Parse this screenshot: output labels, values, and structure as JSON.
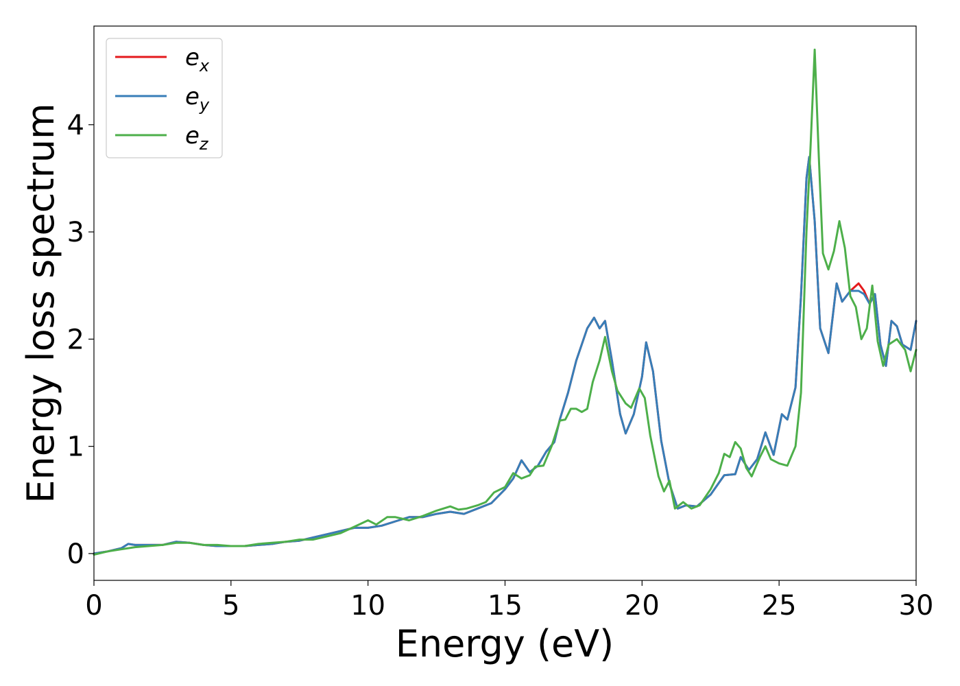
{
  "chart_data": {
    "type": "line",
    "xlabel": "Energy (eV)",
    "ylabel": "Energy loss spectrum",
    "xlim": [
      0,
      30
    ],
    "ylim": [
      -0.25,
      4.92
    ],
    "x_ticks": [
      0,
      5,
      10,
      15,
      20,
      25,
      30
    ],
    "y_ticks": [
      0,
      1,
      2,
      3,
      4
    ],
    "grid": false,
    "legend_position": "top-left",
    "series": [
      {
        "name": "e_x",
        "legend_base": "e",
        "legend_sub": "x",
        "color": "#e41a1c",
        "points": [
          [
            0,
            0
          ],
          [
            0.5,
            0.02
          ],
          [
            1.0,
            0.05
          ],
          [
            1.25,
            0.09
          ],
          [
            1.5,
            0.08
          ],
          [
            2.0,
            0.08
          ],
          [
            2.5,
            0.08
          ],
          [
            3.0,
            0.11
          ],
          [
            3.5,
            0.1
          ],
          [
            4.0,
            0.08
          ],
          [
            4.5,
            0.07
          ],
          [
            5.0,
            0.07
          ],
          [
            5.5,
            0.07
          ],
          [
            6.0,
            0.08
          ],
          [
            6.5,
            0.09
          ],
          [
            7.0,
            0.11
          ],
          [
            7.5,
            0.12
          ],
          [
            8.0,
            0.15
          ],
          [
            8.5,
            0.18
          ],
          [
            9.0,
            0.21
          ],
          [
            9.5,
            0.24
          ],
          [
            10.0,
            0.24
          ],
          [
            10.5,
            0.26
          ],
          [
            11.0,
            0.3
          ],
          [
            11.5,
            0.34
          ],
          [
            12.0,
            0.34
          ],
          [
            12.5,
            0.37
          ],
          [
            13.0,
            0.39
          ],
          [
            13.5,
            0.37
          ],
          [
            14.0,
            0.42
          ],
          [
            14.5,
            0.47
          ],
          [
            15.0,
            0.6
          ],
          [
            15.3,
            0.7
          ],
          [
            15.6,
            0.87
          ],
          [
            15.9,
            0.76
          ],
          [
            16.2,
            0.82
          ],
          [
            16.5,
            0.95
          ],
          [
            16.8,
            1.04
          ],
          [
            17.0,
            1.25
          ],
          [
            17.3,
            1.5
          ],
          [
            17.6,
            1.8
          ],
          [
            18.0,
            2.1
          ],
          [
            18.25,
            2.2
          ],
          [
            18.45,
            2.1
          ],
          [
            18.65,
            2.17
          ],
          [
            18.9,
            1.8
          ],
          [
            19.2,
            1.3
          ],
          [
            19.4,
            1.12
          ],
          [
            19.7,
            1.3
          ],
          [
            20.0,
            1.65
          ],
          [
            20.15,
            1.97
          ],
          [
            20.4,
            1.7
          ],
          [
            20.7,
            1.05
          ],
          [
            21.0,
            0.65
          ],
          [
            21.3,
            0.42
          ],
          [
            21.6,
            0.45
          ],
          [
            22.0,
            0.44
          ],
          [
            22.5,
            0.55
          ],
          [
            23.0,
            0.73
          ],
          [
            23.4,
            0.74
          ],
          [
            23.6,
            0.9
          ],
          [
            23.9,
            0.78
          ],
          [
            24.2,
            0.88
          ],
          [
            24.5,
            1.13
          ],
          [
            24.8,
            0.92
          ],
          [
            25.1,
            1.3
          ],
          [
            25.3,
            1.25
          ],
          [
            25.6,
            1.55
          ],
          [
            25.8,
            2.4
          ],
          [
            26.0,
            3.5
          ],
          [
            26.1,
            3.7
          ],
          [
            26.3,
            3.1
          ],
          [
            26.5,
            2.1
          ],
          [
            26.8,
            1.87
          ],
          [
            27.1,
            2.52
          ],
          [
            27.3,
            2.35
          ],
          [
            27.6,
            2.45
          ],
          [
            27.9,
            2.52
          ],
          [
            28.1,
            2.45
          ],
          [
            28.3,
            2.33
          ],
          [
            28.5,
            2.42
          ],
          [
            28.7,
            1.95
          ],
          [
            28.9,
            1.75
          ],
          [
            29.1,
            2.17
          ],
          [
            29.3,
            2.12
          ],
          [
            29.5,
            1.95
          ],
          [
            29.8,
            1.9
          ],
          [
            30.0,
            2.17
          ]
        ]
      },
      {
        "name": "e_y",
        "legend_base": "e",
        "legend_sub": "y",
        "color": "#377eb8",
        "points": [
          [
            0,
            0
          ],
          [
            0.5,
            0.02
          ],
          [
            1.0,
            0.05
          ],
          [
            1.25,
            0.09
          ],
          [
            1.5,
            0.08
          ],
          [
            2.0,
            0.08
          ],
          [
            2.5,
            0.08
          ],
          [
            3.0,
            0.11
          ],
          [
            3.5,
            0.1
          ],
          [
            4.0,
            0.08
          ],
          [
            4.5,
            0.07
          ],
          [
            5.0,
            0.07
          ],
          [
            5.5,
            0.07
          ],
          [
            6.0,
            0.08
          ],
          [
            6.5,
            0.09
          ],
          [
            7.0,
            0.11
          ],
          [
            7.5,
            0.12
          ],
          [
            8.0,
            0.15
          ],
          [
            8.5,
            0.18
          ],
          [
            9.0,
            0.21
          ],
          [
            9.5,
            0.24
          ],
          [
            10.0,
            0.24
          ],
          [
            10.5,
            0.26
          ],
          [
            11.0,
            0.3
          ],
          [
            11.5,
            0.34
          ],
          [
            12.0,
            0.34
          ],
          [
            12.5,
            0.37
          ],
          [
            13.0,
            0.39
          ],
          [
            13.5,
            0.37
          ],
          [
            14.0,
            0.42
          ],
          [
            14.5,
            0.47
          ],
          [
            15.0,
            0.6
          ],
          [
            15.3,
            0.7
          ],
          [
            15.6,
            0.87
          ],
          [
            15.9,
            0.76
          ],
          [
            16.2,
            0.82
          ],
          [
            16.5,
            0.95
          ],
          [
            16.8,
            1.04
          ],
          [
            17.0,
            1.25
          ],
          [
            17.3,
            1.5
          ],
          [
            17.6,
            1.8
          ],
          [
            18.0,
            2.1
          ],
          [
            18.25,
            2.2
          ],
          [
            18.45,
            2.1
          ],
          [
            18.65,
            2.17
          ],
          [
            18.9,
            1.8
          ],
          [
            19.2,
            1.3
          ],
          [
            19.4,
            1.12
          ],
          [
            19.7,
            1.3
          ],
          [
            20.0,
            1.65
          ],
          [
            20.15,
            1.97
          ],
          [
            20.4,
            1.7
          ],
          [
            20.7,
            1.05
          ],
          [
            21.0,
            0.65
          ],
          [
            21.3,
            0.42
          ],
          [
            21.6,
            0.45
          ],
          [
            22.0,
            0.44
          ],
          [
            22.5,
            0.55
          ],
          [
            23.0,
            0.73
          ],
          [
            23.4,
            0.74
          ],
          [
            23.6,
            0.9
          ],
          [
            23.9,
            0.78
          ],
          [
            24.2,
            0.88
          ],
          [
            24.5,
            1.13
          ],
          [
            24.8,
            0.92
          ],
          [
            25.1,
            1.3
          ],
          [
            25.3,
            1.25
          ],
          [
            25.6,
            1.55
          ],
          [
            25.8,
            2.4
          ],
          [
            26.0,
            3.5
          ],
          [
            26.1,
            3.7
          ],
          [
            26.3,
            3.1
          ],
          [
            26.5,
            2.1
          ],
          [
            26.8,
            1.87
          ],
          [
            27.1,
            2.52
          ],
          [
            27.3,
            2.35
          ],
          [
            27.6,
            2.45
          ],
          [
            27.9,
            2.45
          ],
          [
            28.1,
            2.42
          ],
          [
            28.3,
            2.33
          ],
          [
            28.5,
            2.42
          ],
          [
            28.7,
            1.95
          ],
          [
            28.9,
            1.75
          ],
          [
            29.1,
            2.17
          ],
          [
            29.3,
            2.12
          ],
          [
            29.5,
            1.95
          ],
          [
            29.8,
            1.9
          ],
          [
            30.0,
            2.17
          ]
        ]
      },
      {
        "name": "e_z",
        "legend_base": "e",
        "legend_sub": "z",
        "color": "#4daf4a",
        "points": [
          [
            0,
            -0.01
          ],
          [
            0.5,
            0.02
          ],
          [
            1.0,
            0.04
          ],
          [
            1.5,
            0.06
          ],
          [
            2.0,
            0.07
          ],
          [
            2.5,
            0.08
          ],
          [
            3.0,
            0.1
          ],
          [
            3.5,
            0.1
          ],
          [
            4.0,
            0.08
          ],
          [
            4.5,
            0.08
          ],
          [
            5.0,
            0.07
          ],
          [
            5.5,
            0.07
          ],
          [
            6.0,
            0.09
          ],
          [
            6.5,
            0.1
          ],
          [
            7.0,
            0.11
          ],
          [
            7.5,
            0.13
          ],
          [
            8.0,
            0.13
          ],
          [
            8.5,
            0.16
          ],
          [
            9.0,
            0.19
          ],
          [
            9.5,
            0.25
          ],
          [
            10.0,
            0.31
          ],
          [
            10.3,
            0.27
          ],
          [
            10.7,
            0.34
          ],
          [
            11.0,
            0.34
          ],
          [
            11.5,
            0.31
          ],
          [
            12.0,
            0.35
          ],
          [
            12.5,
            0.4
          ],
          [
            13.0,
            0.44
          ],
          [
            13.3,
            0.41
          ],
          [
            13.6,
            0.42
          ],
          [
            14.0,
            0.45
          ],
          [
            14.3,
            0.48
          ],
          [
            14.6,
            0.57
          ],
          [
            15.0,
            0.62
          ],
          [
            15.3,
            0.75
          ],
          [
            15.6,
            0.7
          ],
          [
            15.9,
            0.73
          ],
          [
            16.1,
            0.81
          ],
          [
            16.4,
            0.82
          ],
          [
            16.7,
            1.0
          ],
          [
            17.0,
            1.24
          ],
          [
            17.2,
            1.25
          ],
          [
            17.4,
            1.35
          ],
          [
            17.6,
            1.35
          ],
          [
            17.8,
            1.32
          ],
          [
            18.0,
            1.35
          ],
          [
            18.2,
            1.6
          ],
          [
            18.45,
            1.8
          ],
          [
            18.65,
            2.02
          ],
          [
            18.9,
            1.7
          ],
          [
            19.1,
            1.52
          ],
          [
            19.4,
            1.4
          ],
          [
            19.6,
            1.36
          ],
          [
            19.9,
            1.54
          ],
          [
            20.1,
            1.45
          ],
          [
            20.3,
            1.1
          ],
          [
            20.6,
            0.72
          ],
          [
            20.8,
            0.58
          ],
          [
            21.0,
            0.68
          ],
          [
            21.2,
            0.42
          ],
          [
            21.5,
            0.48
          ],
          [
            21.8,
            0.42
          ],
          [
            22.1,
            0.45
          ],
          [
            22.5,
            0.6
          ],
          [
            22.8,
            0.75
          ],
          [
            23.0,
            0.93
          ],
          [
            23.2,
            0.9
          ],
          [
            23.4,
            1.04
          ],
          [
            23.6,
            0.98
          ],
          [
            23.8,
            0.8
          ],
          [
            24.0,
            0.72
          ],
          [
            24.3,
            0.9
          ],
          [
            24.5,
            1.0
          ],
          [
            24.7,
            0.88
          ],
          [
            25.0,
            0.84
          ],
          [
            25.3,
            0.82
          ],
          [
            25.6,
            1.0
          ],
          [
            25.8,
            1.5
          ],
          [
            26.0,
            3.0
          ],
          [
            26.15,
            3.8
          ],
          [
            26.3,
            4.7
          ],
          [
            26.45,
            3.7
          ],
          [
            26.6,
            2.8
          ],
          [
            26.8,
            2.65
          ],
          [
            27.0,
            2.82
          ],
          [
            27.2,
            3.1
          ],
          [
            27.4,
            2.85
          ],
          [
            27.6,
            2.4
          ],
          [
            27.8,
            2.3
          ],
          [
            28.0,
            2.0
          ],
          [
            28.2,
            2.1
          ],
          [
            28.4,
            2.5
          ],
          [
            28.6,
            1.98
          ],
          [
            28.8,
            1.75
          ],
          [
            29.0,
            1.95
          ],
          [
            29.3,
            2.0
          ],
          [
            29.6,
            1.9
          ],
          [
            29.8,
            1.7
          ],
          [
            30.0,
            1.9
          ]
        ]
      }
    ]
  }
}
